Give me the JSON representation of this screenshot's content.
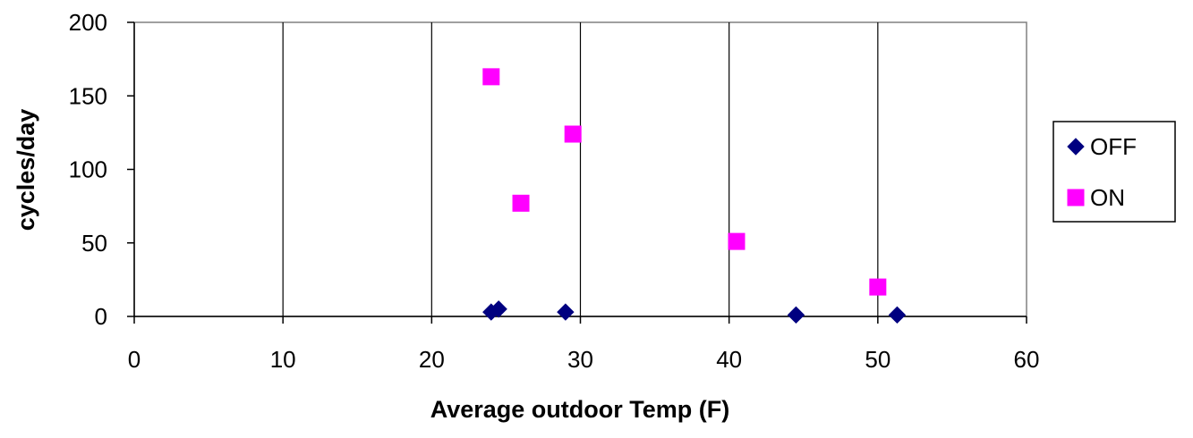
{
  "chart_data": {
    "type": "scatter",
    "title": "",
    "xlabel": "Average outdoor Temp (F)",
    "ylabel": "cycles/day",
    "xlim": [
      0,
      60
    ],
    "ylim": [
      0,
      200
    ],
    "xticks": [
      0,
      10,
      20,
      30,
      40,
      50,
      60
    ],
    "yticks": [
      0,
      50,
      100,
      150,
      200
    ],
    "grid": {
      "x": true,
      "y": false
    },
    "legend": {
      "placement": "right"
    },
    "series": [
      {
        "name": "OFF",
        "marker": "diamond",
        "color": "#000080",
        "points": [
          {
            "x": 24.0,
            "y": 3
          },
          {
            "x": 24.5,
            "y": 5
          },
          {
            "x": 29.0,
            "y": 3
          },
          {
            "x": 44.5,
            "y": 1
          },
          {
            "x": 51.3,
            "y": 1
          }
        ]
      },
      {
        "name": "ON",
        "marker": "square",
        "color": "#FF00FF",
        "points": [
          {
            "x": 24.0,
            "y": 163
          },
          {
            "x": 26.0,
            "y": 77
          },
          {
            "x": 29.5,
            "y": 124
          },
          {
            "x": 40.5,
            "y": 51
          },
          {
            "x": 50.0,
            "y": 20
          }
        ]
      }
    ]
  }
}
